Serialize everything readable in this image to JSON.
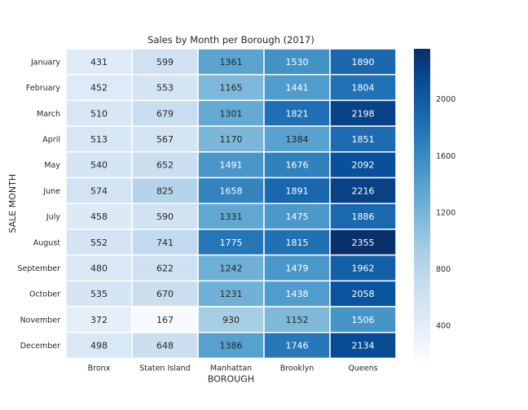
{
  "chart_data": {
    "type": "heatmap",
    "title": "Sales by Month per Borough (2017)",
    "xlabel": "BOROUGH",
    "ylabel": "SALE MONTH",
    "columns": [
      "Bronx",
      "Staten Island",
      "Manhattan",
      "Brooklyn",
      "Queens"
    ],
    "rows": [
      "January",
      "February",
      "March",
      "April",
      "May",
      "June",
      "July",
      "August",
      "September",
      "October",
      "November",
      "December"
    ],
    "values": [
      [
        431,
        599,
        1361,
        1530,
        1890
      ],
      [
        452,
        553,
        1165,
        1441,
        1804
      ],
      [
        510,
        679,
        1301,
        1821,
        2198
      ],
      [
        513,
        567,
        1170,
        1384,
        1851
      ],
      [
        540,
        652,
        1491,
        1676,
        2092
      ],
      [
        574,
        825,
        1658,
        1891,
        2216
      ],
      [
        458,
        590,
        1331,
        1475,
        1886
      ],
      [
        552,
        741,
        1775,
        1815,
        2355
      ],
      [
        480,
        622,
        1242,
        1479,
        1962
      ],
      [
        535,
        670,
        1231,
        1438,
        2058
      ],
      [
        372,
        167,
        930,
        1152,
        1506
      ],
      [
        498,
        648,
        1386,
        1746,
        2134
      ]
    ],
    "colorbar": {
      "colormap": "Blues",
      "vmin": 167,
      "vmax": 2355,
      "ticks": [
        400,
        800,
        1200,
        1600,
        2000
      ]
    },
    "grid": false
  }
}
